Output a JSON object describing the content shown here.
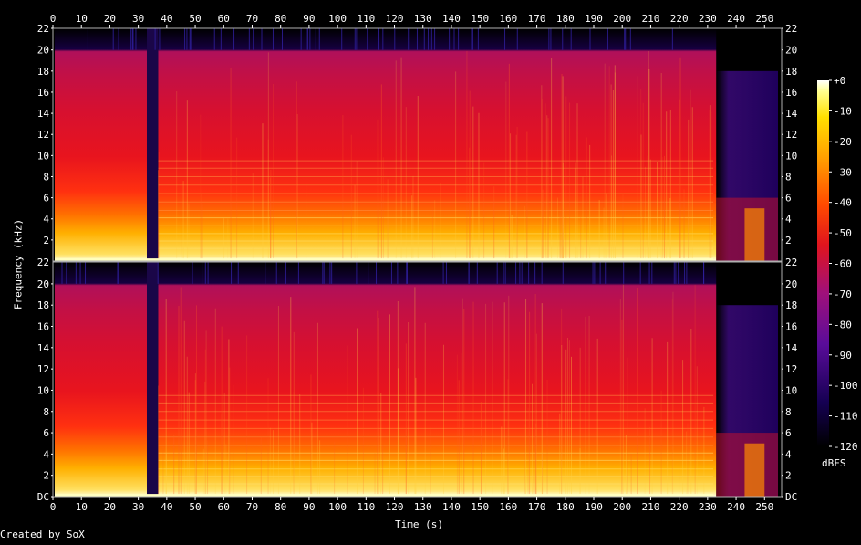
{
  "chart_data": {
    "type": "heatmap",
    "subtype": "spectrogram",
    "channels": 2,
    "xlabel": "Time (s)",
    "ylabel": "Frequency (kHz)",
    "x_ticks": [
      0,
      10,
      20,
      30,
      40,
      50,
      60,
      70,
      80,
      90,
      100,
      110,
      120,
      130,
      140,
      150,
      160,
      170,
      180,
      190,
      200,
      210,
      220,
      230,
      240,
      250
    ],
    "xlim": [
      0,
      256
    ],
    "y_tick_labels_top": [
      "2",
      "4",
      "6",
      "8",
      "10",
      "12",
      "14",
      "16",
      "18",
      "20",
      "22"
    ],
    "y_tick_labels_bottom": [
      "DC",
      "2",
      "4",
      "6",
      "8",
      "10",
      "12",
      "14",
      "16",
      "18",
      "20"
    ],
    "y_tick_values": [
      0,
      2,
      4,
      6,
      8,
      10,
      12,
      14,
      16,
      18,
      20
    ],
    "ylim_khz": [
      0,
      22.05
    ],
    "colorbar": {
      "label": "dBFS",
      "ticks": [
        "+0",
        "-10",
        "-20",
        "-30",
        "-40",
        "-50",
        "-60",
        "-70",
        "-80",
        "-90",
        "-100",
        "-110",
        "-120"
      ],
      "range_db": [
        -120,
        0
      ]
    },
    "silent_gap_s": [
      33,
      37
    ],
    "fade_out_start_s": 233,
    "cutoff_khz": 20,
    "colormap": [
      "#000000",
      "#1c0066",
      "#5a0a9a",
      "#9a0a6e",
      "#d6121e",
      "#ff3a00",
      "#ff8a00",
      "#ffd000",
      "#ffffa0",
      "#ffffff"
    ]
  },
  "footer": {
    "credit": "Created by SoX"
  }
}
